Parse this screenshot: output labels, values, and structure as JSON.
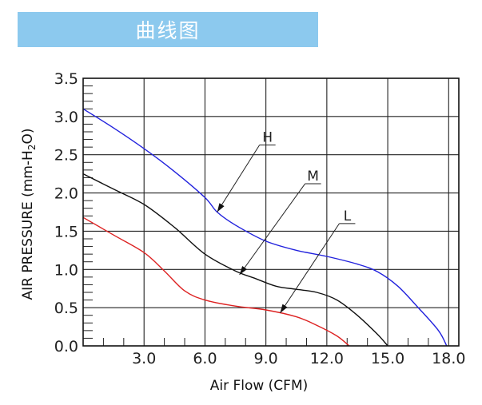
{
  "banner": {
    "title": "曲线图",
    "color": "#8cc9ee"
  },
  "chart_data": {
    "type": "line",
    "title": "",
    "xlabel": "Air Flow (CFM)",
    "ylabel_parts": [
      "AIR PRESSURE (mm-H",
      "2",
      "O)"
    ],
    "xlim": [
      0,
      18.5
    ],
    "ylim": [
      0,
      3.5
    ],
    "x_ticks": [
      3,
      6,
      9,
      12,
      15,
      18
    ],
    "x_tick_labels": [
      "3.0",
      "6.0",
      "9.0",
      "12.0",
      "15.0",
      "18.0"
    ],
    "y_ticks": [
      0,
      0.5,
      1,
      1.5,
      2,
      2.5,
      3,
      3.5
    ],
    "y_tick_labels": [
      "0.0",
      "0.5",
      "1.0",
      "1.5",
      "2.0",
      "2.5",
      "3.0",
      "3.5"
    ],
    "grid": true,
    "series": [
      {
        "name": "H",
        "color": "#2222dd",
        "x": [
          0,
          1.5,
          3,
          4.5,
          6,
          6.6,
          7.5,
          9,
          10.5,
          12,
          13.5,
          14.5,
          15.5,
          16.5,
          17.5,
          17.9
        ],
        "y": [
          3.1,
          2.85,
          2.58,
          2.28,
          1.94,
          1.75,
          1.58,
          1.37,
          1.25,
          1.17,
          1.07,
          0.97,
          0.78,
          0.5,
          0.2,
          0.0
        ]
      },
      {
        "name": "M",
        "color": "#111111",
        "x": [
          0,
          1.5,
          3,
          4.5,
          6,
          7.5,
          8.5,
          9.5,
          10.5,
          11.5,
          12.5,
          13.5,
          14.5,
          15.0
        ],
        "y": [
          2.25,
          2.05,
          1.85,
          1.55,
          1.2,
          0.98,
          0.88,
          0.78,
          0.74,
          0.7,
          0.6,
          0.4,
          0.15,
          0.0
        ]
      },
      {
        "name": "L",
        "color": "#dd2222",
        "x": [
          0,
          1.5,
          3,
          4,
          5,
          6,
          7.5,
          9,
          10.5,
          11.5,
          12.5,
          13.1
        ],
        "y": [
          1.68,
          1.45,
          1.22,
          0.98,
          0.72,
          0.6,
          0.52,
          0.47,
          0.38,
          0.27,
          0.13,
          0.0
        ]
      }
    ],
    "annotations": [
      {
        "label": "H",
        "target": [
          6.6,
          1.75
        ]
      },
      {
        "label": "M",
        "target": [
          7.7,
          0.93
        ]
      },
      {
        "label": "L",
        "target": [
          9.7,
          0.43
        ]
      }
    ]
  }
}
